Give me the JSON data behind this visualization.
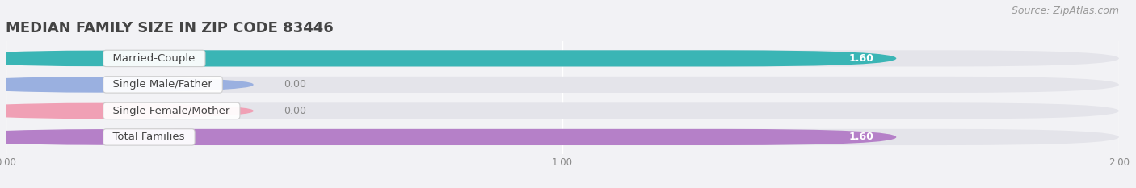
{
  "title": "MEDIAN FAMILY SIZE IN ZIP CODE 83446",
  "source_text": "Source: ZipAtlas.com",
  "categories": [
    "Married-Couple",
    "Single Male/Father",
    "Single Female/Mother",
    "Total Families"
  ],
  "values": [
    1.6,
    0.0,
    0.0,
    1.6
  ],
  "bar_colors": [
    "#3ab5b5",
    "#9ab0e0",
    "#f0a0b5",
    "#b580c8"
  ],
  "bar_bg_color": "#e4e4ea",
  "value_label_color": "white",
  "zero_label_color": "#888888",
  "xlim": [
    0,
    2.0
  ],
  "xticks": [
    0.0,
    1.0,
    2.0
  ],
  "xtick_labels": [
    "0.00",
    "1.00",
    "2.00"
  ],
  "background_color": "#f2f2f5",
  "title_fontsize": 13,
  "label_fontsize": 9.5,
  "value_fontsize": 9,
  "source_fontsize": 9
}
